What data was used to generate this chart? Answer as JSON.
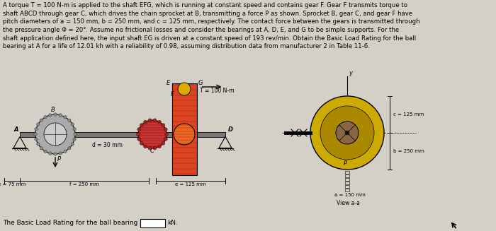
{
  "bg_color": "#d4d0c8",
  "paragraph": "A torque T = 100 N-m is applied to the shaft EFG, which is running at constant speed and contains gear F. Gear F transmits torque to\nshaft ABCD through gear C, which drives the chain sprocket at B, transmitting a force P as shown. Sprocket B, gear C, and gear F have\npitch diameters of a = 150 mm, b = 250 mm, and c = 125 mm, respectively. The contact force between the gears is transmitted through\nthe pressure angle Φ = 20°. Assume no frictional losses and consider the bearings at A, D, E, and G to be simple supports. For the\nshaft application defined here, the input shaft EG is driven at a constant speed of 193 rev/min. Obtain the Basic Load Rating for the ball\nbearing at A for a life of 12.01 kh with a reliability of 0.98, assuming distribution data from manufacturer 2 in Table 11-6.",
  "bottom_text": "The Basic Load Rating for the ball bearing at A is",
  "bottom_unit": "kN.",
  "fig_width": 7.0,
  "fig_height": 3.27,
  "dpi": 100
}
